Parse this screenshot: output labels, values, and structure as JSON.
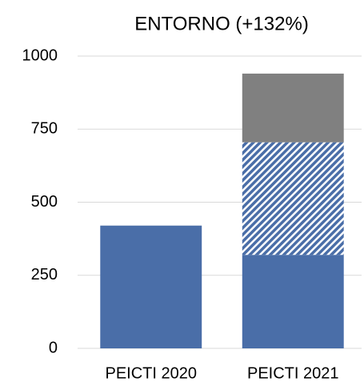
{
  "chart_data": {
    "type": "stacked_bar",
    "title": "ENTORNO (+132%)",
    "categories": [
      "PEICTI 2020",
      "PEICTI 2021"
    ],
    "series": [
      {
        "color": "#4a6ea8",
        "values": [
          420,
          320
        ]
      },
      {
        "color": "#4a6ea8",
        "hatch": true,
        "values": [
          null,
          385
        ]
      },
      {
        "color": "#808080",
        "values": [
          null,
          235
        ]
      }
    ],
    "ylim": [
      0,
      1000
    ],
    "yticks": [
      0,
      250,
      500,
      750,
      1000
    ],
    "grid": true
  }
}
